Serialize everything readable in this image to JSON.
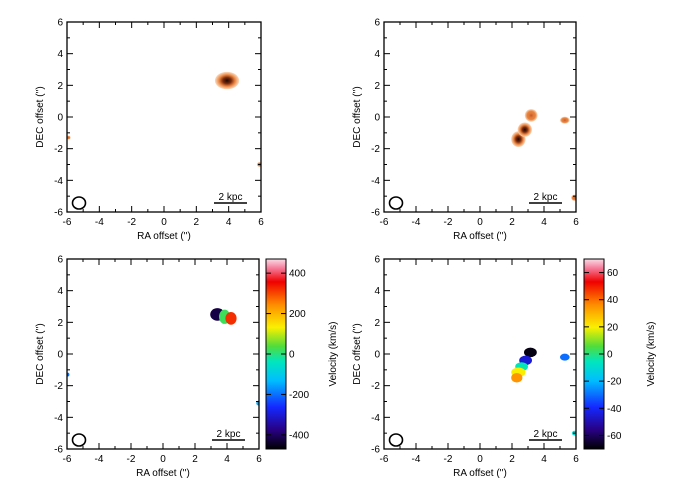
{
  "chart_data": [
    {
      "type": "heatmap",
      "kind": "intensity",
      "xlabel": "RA offset ('')",
      "ylabel": "DEC offset ('')",
      "xlim": [
        -6,
        6
      ],
      "ylim": [
        -6,
        6
      ],
      "xticks": [
        -6,
        -4,
        -2,
        0,
        2,
        4,
        6
      ],
      "yticks": [
        -6,
        -4,
        -2,
        0,
        2,
        4,
        6
      ],
      "scale_bar": "2 kpc",
      "sources": [
        {
          "x": 3.9,
          "y": 2.3,
          "rx": 0.75,
          "ry": 0.55,
          "peak": 1.0
        },
        {
          "x": 5.9,
          "y": -3.0,
          "rx": 0.15,
          "ry": 0.15,
          "peak": 0.4
        },
        {
          "x": -5.9,
          "y": -1.3,
          "rx": 0.12,
          "ry": 0.12,
          "peak": 0.3
        }
      ]
    },
    {
      "type": "heatmap",
      "kind": "intensity",
      "xlabel": "RA offset ('')",
      "ylabel": "DEC offset ('')",
      "xlim": [
        -6,
        6
      ],
      "ylim": [
        -6,
        6
      ],
      "xticks": [
        -6,
        -4,
        -2,
        0,
        2,
        4,
        6
      ],
      "yticks": [
        -6,
        -4,
        -2,
        0,
        2,
        4,
        6
      ],
      "scale_bar": "2 kpc",
      "sources": [
        {
          "x": 2.4,
          "y": -1.4,
          "rx": 0.45,
          "ry": 0.5,
          "peak": 1.0
        },
        {
          "x": 2.8,
          "y": -0.8,
          "rx": 0.45,
          "ry": 0.45,
          "peak": 0.95
        },
        {
          "x": 3.2,
          "y": 0.1,
          "rx": 0.4,
          "ry": 0.4,
          "peak": 0.8
        },
        {
          "x": 5.3,
          "y": -0.2,
          "rx": 0.3,
          "ry": 0.22,
          "peak": 0.4
        },
        {
          "x": 5.9,
          "y": -5.1,
          "rx": 0.2,
          "ry": 0.2,
          "peak": 0.6
        }
      ]
    },
    {
      "type": "heatmap",
      "kind": "velocity",
      "xlabel": "RA offset ('')",
      "ylabel": "DEC offset ('')",
      "xlim": [
        -6,
        6
      ],
      "ylim": [
        -6,
        6
      ],
      "xticks": [
        -6,
        -4,
        -2,
        0,
        2,
        4,
        6
      ],
      "yticks": [
        -6,
        -4,
        -2,
        0,
        2,
        4,
        6
      ],
      "scale_bar": "2 kpc",
      "colorbar": {
        "label": "Velocity (km/s)",
        "range": [
          -470,
          470
        ],
        "ticks": [
          -400,
          -200,
          0,
          200,
          400
        ]
      },
      "blobs": [
        {
          "x": 3.4,
          "y": 2.5,
          "rx": 0.45,
          "ry": 0.4,
          "velocity": -420
        },
        {
          "x": 3.85,
          "y": 2.35,
          "rx": 0.35,
          "ry": 0.45,
          "velocity": 20
        },
        {
          "x": 4.25,
          "y": 2.25,
          "rx": 0.35,
          "ry": 0.4,
          "velocity": 320
        },
        {
          "x": 5.95,
          "y": -3.1,
          "rx": 0.12,
          "ry": 0.15,
          "velocity": -150
        },
        {
          "x": -5.95,
          "y": -1.3,
          "rx": 0.1,
          "ry": 0.12,
          "velocity": -200
        }
      ]
    },
    {
      "type": "heatmap",
      "kind": "velocity",
      "xlabel": "RA offset ('')",
      "ylabel": "DEC offset ('')",
      "xlim": [
        -6,
        6
      ],
      "ylim": [
        -6,
        6
      ],
      "xticks": [
        -6,
        -4,
        -2,
        0,
        2,
        4,
        6
      ],
      "yticks": [
        -6,
        -4,
        -2,
        0,
        2,
        4,
        6
      ],
      "scale_bar": "2 kpc",
      "colorbar": {
        "label": "Velocity (km/s)",
        "range": [
          -70,
          70
        ],
        "ticks": [
          -60,
          -40,
          -20,
          0,
          20,
          40,
          60
        ]
      },
      "blobs": [
        {
          "x": 3.15,
          "y": 0.1,
          "rx": 0.4,
          "ry": 0.3,
          "velocity": -68
        },
        {
          "x": 2.85,
          "y": -0.4,
          "rx": 0.4,
          "ry": 0.3,
          "velocity": -45
        },
        {
          "x": 2.6,
          "y": -0.8,
          "rx": 0.4,
          "ry": 0.28,
          "velocity": -5
        },
        {
          "x": 2.4,
          "y": -1.15,
          "rx": 0.45,
          "ry": 0.3,
          "velocity": 20
        },
        {
          "x": 2.3,
          "y": -1.5,
          "rx": 0.35,
          "ry": 0.3,
          "velocity": 35
        },
        {
          "x": 5.3,
          "y": -0.2,
          "rx": 0.3,
          "ry": 0.22,
          "velocity": -30
        },
        {
          "x": 5.9,
          "y": -5.0,
          "rx": 0.15,
          "ry": 0.15,
          "velocity": -10
        }
      ]
    }
  ]
}
